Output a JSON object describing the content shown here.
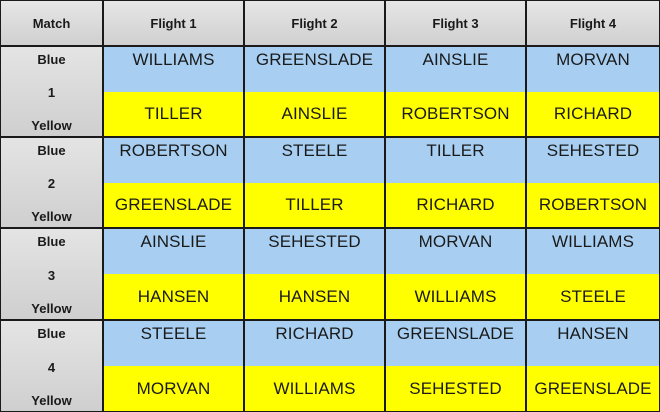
{
  "header": {
    "match": "Match",
    "flights": [
      "Flight 1",
      "Flight 2",
      "Flight 3",
      "Flight 4"
    ]
  },
  "matches": [
    {
      "number": "1",
      "blue_label": "Blue",
      "yellow_label": "Yellow",
      "blue": [
        "WILLIAMS",
        "GREENSLADE",
        "AINSLIE",
        "MORVAN"
      ],
      "yellow": [
        "TILLER",
        "AINSLIE",
        "ROBERTSON",
        "RICHARD"
      ]
    },
    {
      "number": "2",
      "blue_label": "Blue",
      "yellow_label": "Yellow",
      "blue": [
        "ROBERTSON",
        "STEELE",
        "TILLER",
        "SEHESTED"
      ],
      "yellow": [
        "GREENSLADE",
        "TILLER",
        "RICHARD",
        "ROBERTSON"
      ]
    },
    {
      "number": "3",
      "blue_label": "Blue",
      "yellow_label": "Yellow",
      "blue": [
        "AINSLIE",
        "SEHESTED",
        "MORVAN",
        "WILLIAMS"
      ],
      "yellow": [
        "HANSEN",
        "HANSEN",
        "WILLIAMS",
        "STEELE"
      ]
    },
    {
      "number": "4",
      "blue_label": "Blue",
      "yellow_label": "Yellow",
      "blue": [
        "STEELE",
        "RICHARD",
        "GREENSLADE",
        "HANSEN"
      ],
      "yellow": [
        "MORVAN",
        "WILLIAMS",
        "SEHESTED",
        "GREENSLADE"
      ]
    }
  ],
  "colors": {
    "blue": "#a8cff2",
    "yellow": "#ffff00",
    "header_gray": "#dcdcdc",
    "border": "#1a1a1a"
  }
}
